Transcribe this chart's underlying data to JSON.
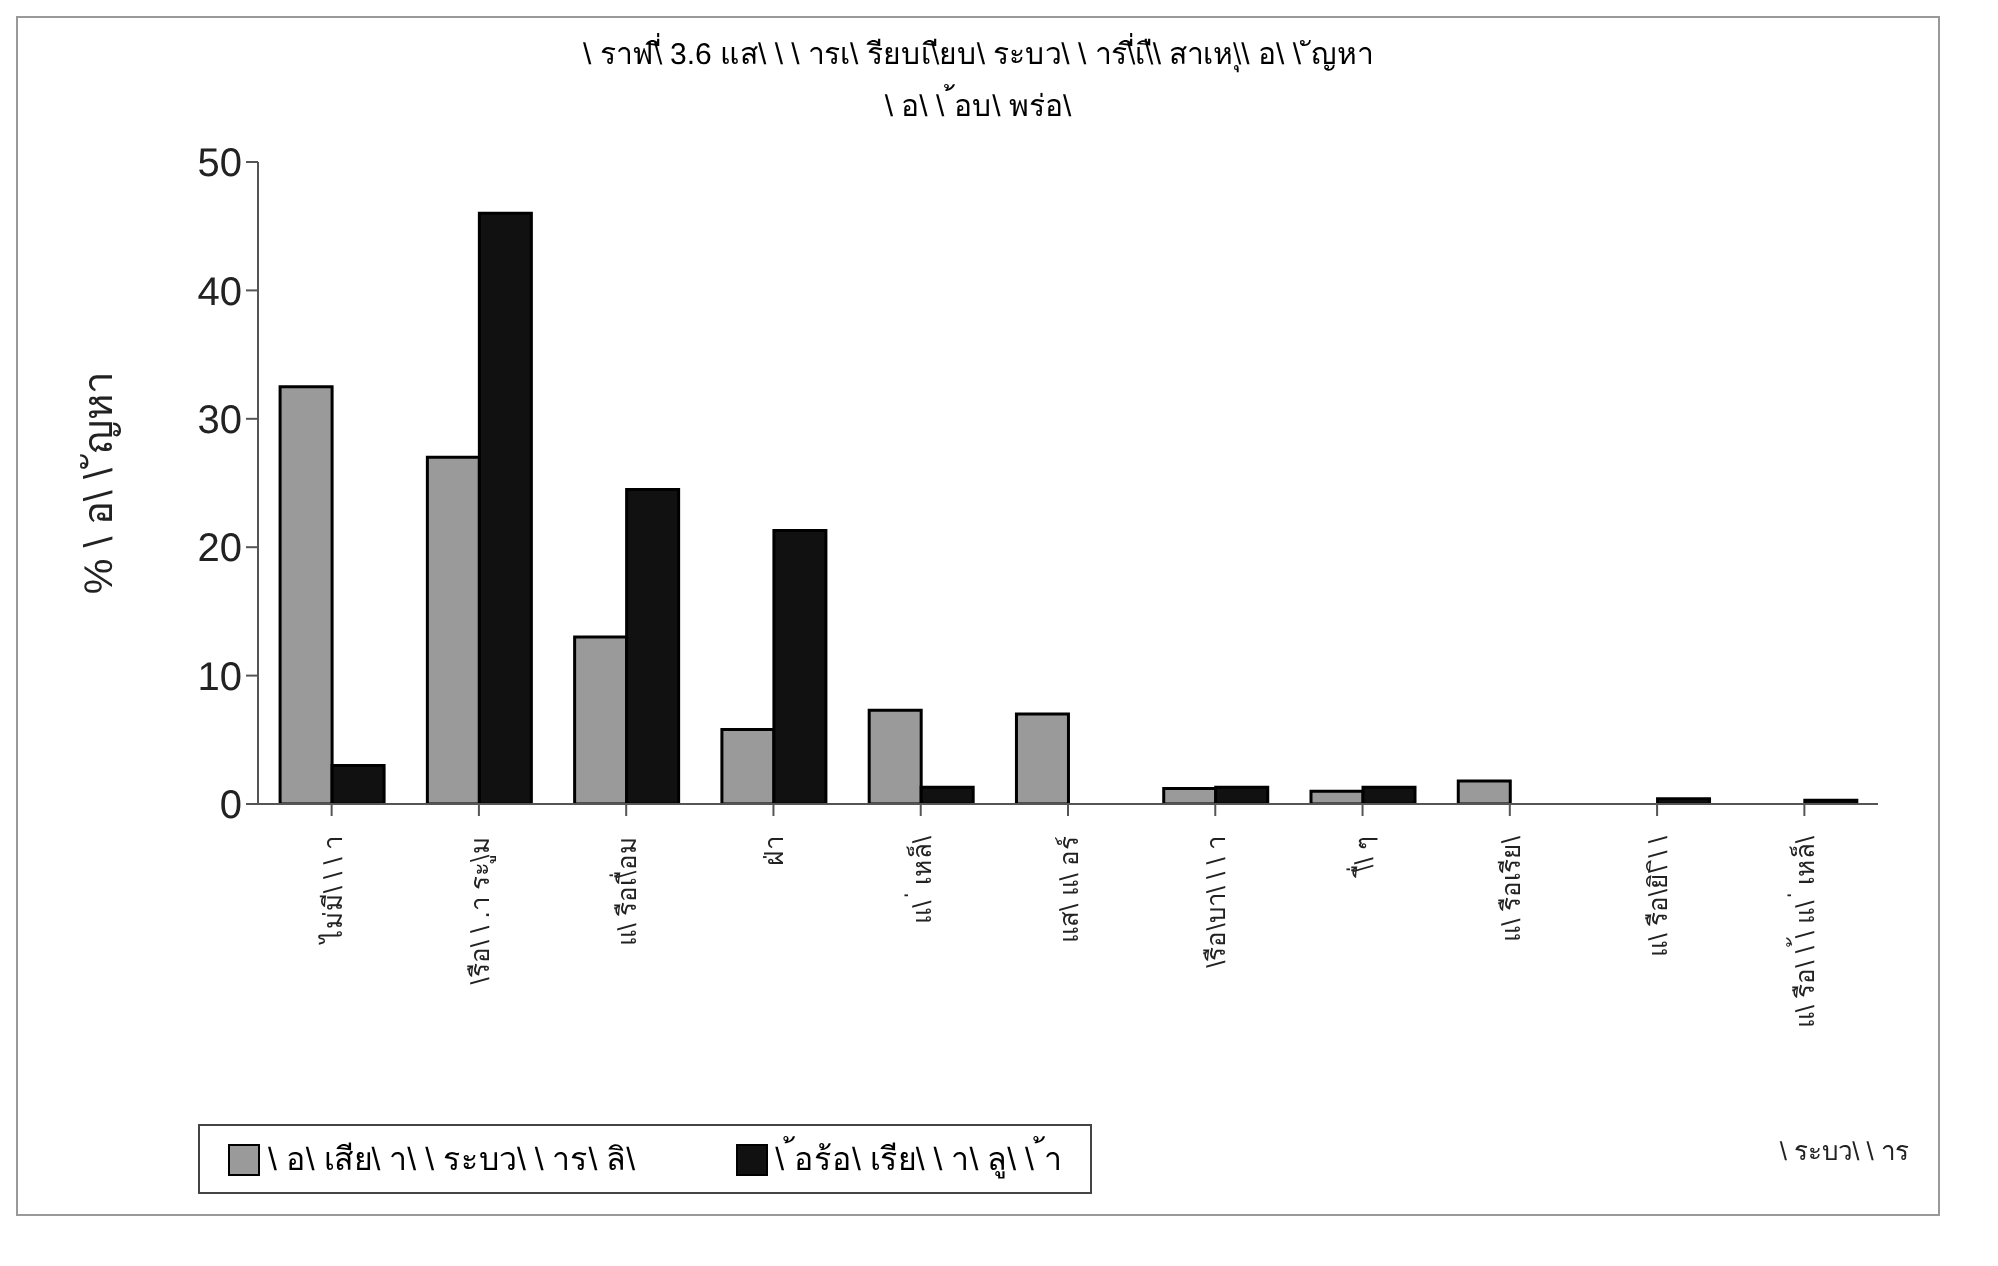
{
  "chart_data": {
    "type": "bar",
    "title": "\\ ราฟ\\ี่ 3.6 แส\\ \\ \\ ารเ\\ รียบเ\\ียบ\\ ระบว\\ \\ าร\\ี่เ\\ื\\ สาเห\\ุ\\ อ\\ \\ ัญหา\n\\ อ\\ \\ ้อบ\\ พร่อ\\",
    "ylabel": "% \\ อ\\ \\ ัญหา",
    "categories": [
      "ไม่มี\\ \\ \\ า",
      "\\รือ\\ \\ .า ระ\\ูม",
      "แ\\ รือเ\\ื่อม",
      "ฝ่า",
      "แ\\ ่ เหล็\\",
      "แส\\ แ\\ อร์",
      "\\รือ\\บา\\ \\ \\ า",
      "\\ื่\\ ๆ",
      "แ\\ รือเรีย\\",
      "แ\\ รือ\\ยิ\\ ิ\\ \\",
      "แ\\ รือ\\ \\ ้\\ แ\\ ่ เหล็\\\n\\ ระบว\\ \\ าร"
    ],
    "series": [
      {
        "name": "\\ อ\\ เสีย\\ า\\ \\ ระบว\\ \\ าร\\ ลิ\\",
        "color": "#9a9a9a",
        "values": [
          32.5,
          27,
          13,
          5.8,
          7.3,
          7,
          1.2,
          1,
          1.8,
          0,
          0
        ]
      },
      {
        "name": "\\ ้อร้อ\\ เรีย\\ \\ า\\ ลู\\ \\ ้า",
        "color": "#111111",
        "values": [
          3,
          46,
          24.5,
          21.3,
          1.3,
          0,
          1.3,
          1.3,
          0,
          0.4,
          0.3
        ]
      }
    ],
    "ylim": [
      0,
      50
    ],
    "yticks": [
      0,
      10,
      20,
      30,
      40,
      50
    ],
    "grid": false,
    "legend": "bottom"
  }
}
